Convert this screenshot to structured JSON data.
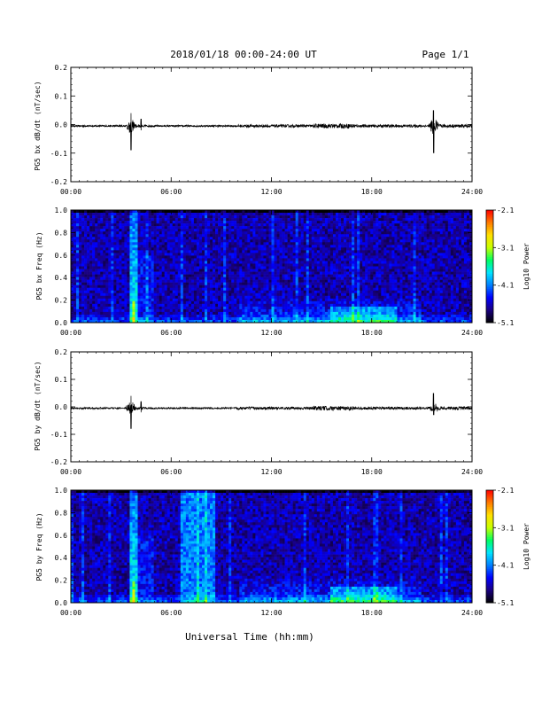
{
  "header": {
    "title": "2018/01/18  00:00-24:00 UT",
    "page": "Page 1/1"
  },
  "xaxis": {
    "label": "Universal Time (hh:mm)",
    "ticks": [
      "00:00",
      "06:00",
      "12:00",
      "18:00",
      "24:00"
    ]
  },
  "colorbar": {
    "label": "Log10 Power",
    "ticks": [
      "-2.1",
      "-3.1",
      "-4.1",
      "-5.1"
    ],
    "colors": [
      "#000000",
      "#1a0080",
      "#0000ff",
      "#0080ff",
      "#00e5ff",
      "#00ff60",
      "#c8ff00",
      "#ffe000",
      "#ff7a00",
      "#ff0000"
    ]
  },
  "chart_data": [
    {
      "type": "line",
      "ylabel": "PG5 bx dB/dt (nT/sec)",
      "ylim": [
        -0.2,
        0.2
      ],
      "yticks": [
        "0.2",
        "0.1",
        "0.0",
        "-0.1",
        "-0.2"
      ],
      "x_range_hours": [
        0,
        24
      ],
      "baseline": -0.005,
      "features": [
        {
          "t_hours": 3.6,
          "min": -0.09,
          "max": 0.04
        },
        {
          "t_hours": 4.2,
          "min": -0.02,
          "max": 0.02
        },
        {
          "t_hours": 21.7,
          "min": -0.1,
          "max": 0.05
        }
      ],
      "color": "#000000"
    },
    {
      "type": "heatmap",
      "ylabel": "PG5 bx Freq (Hz)",
      "ylim": [
        0.0,
        1.0
      ],
      "yticks": [
        "1.0",
        "0.8",
        "0.6",
        "0.4",
        "0.2",
        "0.0"
      ],
      "x_range_hours": [
        0,
        24
      ],
      "zlim": [
        -5.1,
        -2.1
      ]
    },
    {
      "type": "line",
      "ylabel": "PG5 by dB/dt (nT/sec)",
      "ylim": [
        -0.2,
        0.2
      ],
      "yticks": [
        "0.2",
        "0.1",
        "0.0",
        "-0.1",
        "-0.2"
      ],
      "x_range_hours": [
        0,
        24
      ],
      "baseline": -0.005,
      "features": [
        {
          "t_hours": 3.6,
          "min": -0.08,
          "max": 0.04
        },
        {
          "t_hours": 4.2,
          "min": -0.02,
          "max": 0.02
        },
        {
          "t_hours": 21.7,
          "min": -0.03,
          "max": 0.05
        }
      ],
      "color": "#000000"
    },
    {
      "type": "heatmap",
      "ylabel": "PG5 by Freq (Hz)",
      "ylim": [
        0.0,
        1.0
      ],
      "yticks": [
        "1.0",
        "0.8",
        "0.6",
        "0.4",
        "0.2",
        "0.0"
      ],
      "x_range_hours": [
        0,
        24
      ],
      "zlim": [
        -5.1,
        -2.1
      ],
      "features": [
        {
          "type": "broadband-band",
          "t_start_hours": 6.5,
          "t_end_hours": 8.7
        }
      ]
    }
  ]
}
